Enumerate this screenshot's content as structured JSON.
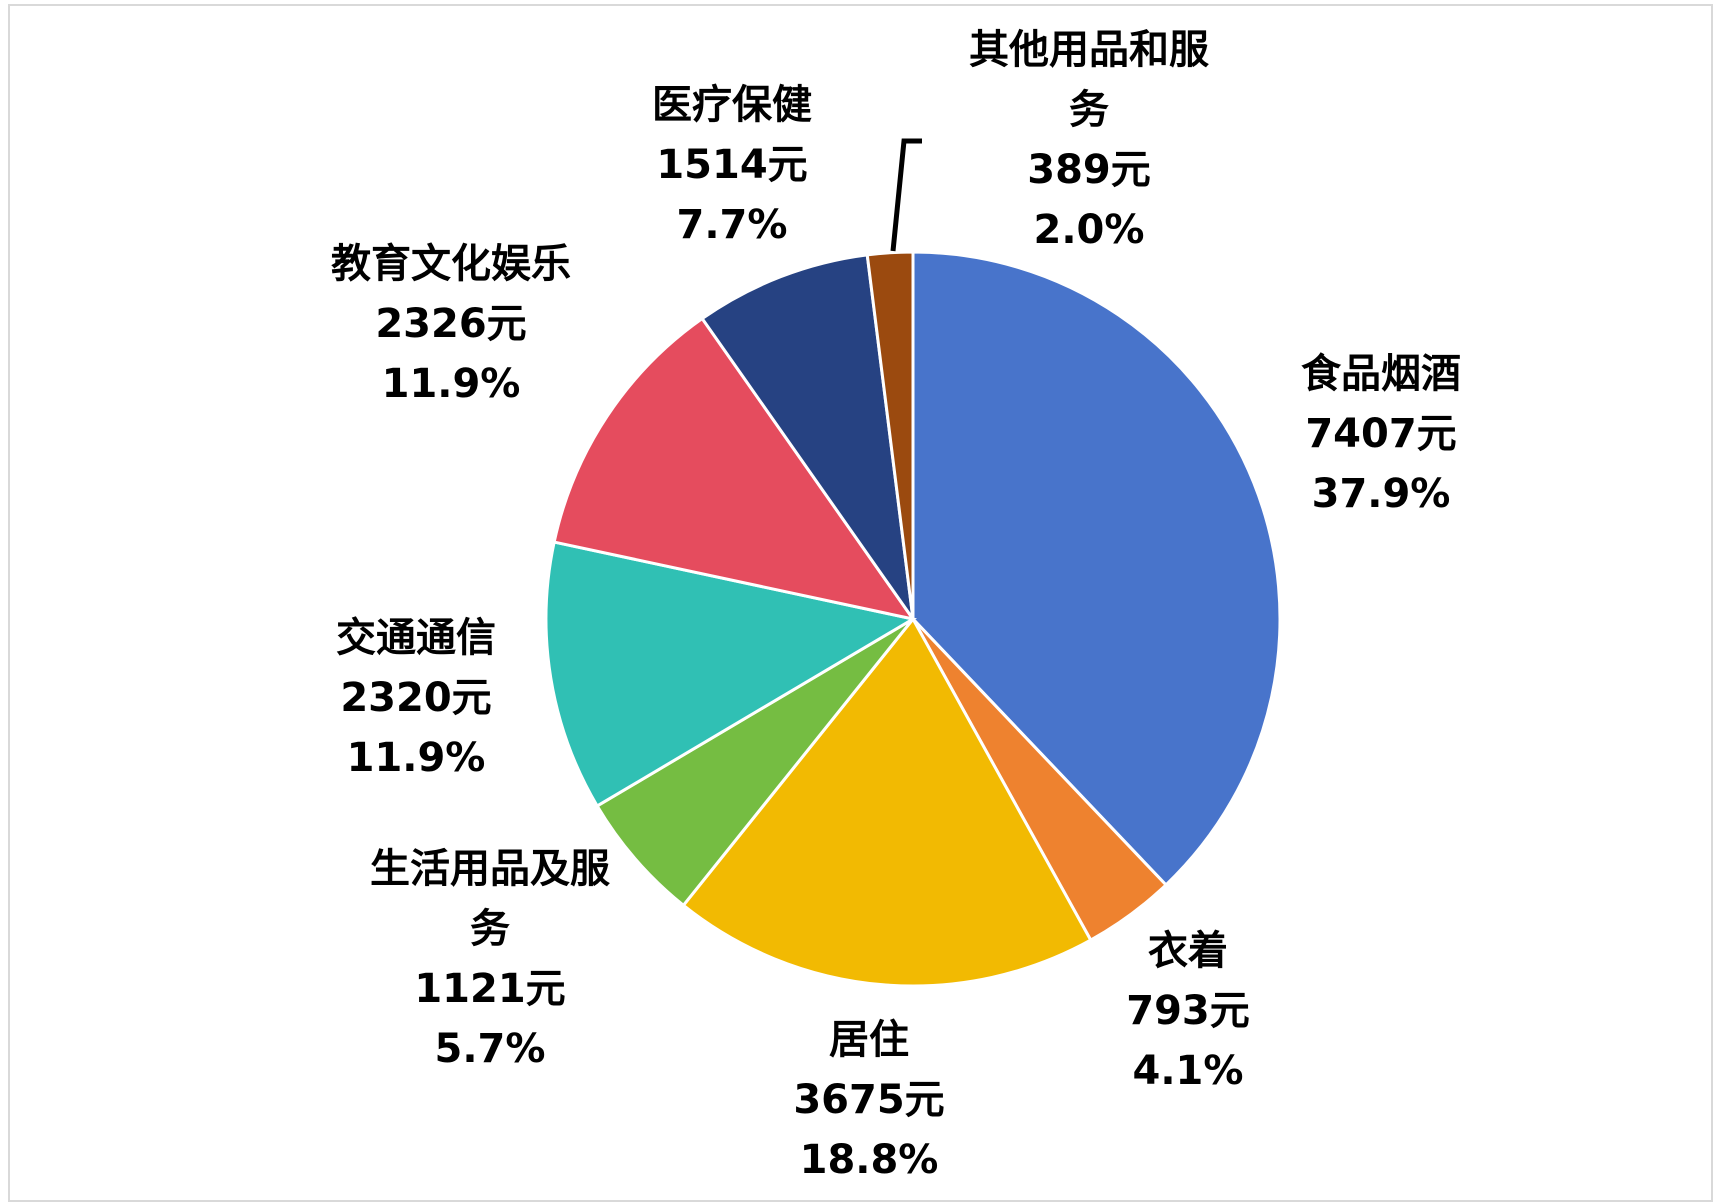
{
  "chart_data": {
    "type": "pie",
    "categories": [
      "食品烟酒",
      "衣着",
      "居住",
      "生活用品及服务",
      "交通通信",
      "教育文化娱乐",
      "医疗保健",
      "其他用品和服务"
    ],
    "values": [
      7407,
      793,
      3675,
      1121,
      2320,
      2326,
      1514,
      389
    ],
    "value_labels": [
      "7407元",
      "793元",
      "3675元",
      "1121元",
      "2320元",
      "2326元",
      "1514元",
      "389元"
    ],
    "percents": [
      37.9,
      4.1,
      18.8,
      5.7,
      11.9,
      11.9,
      7.7,
      2.0
    ],
    "percent_labels": [
      "37.9%",
      "4.1%",
      "18.8%",
      "5.7%",
      "11.9%",
      "11.9%",
      "7.7%",
      "2.0%"
    ],
    "colors": [
      "#4874cb",
      "#ee822f",
      "#f2ba02",
      "#75bd42",
      "#30c0b4",
      "#e54c5e",
      "#264282",
      "#9b4a0f"
    ]
  }
}
